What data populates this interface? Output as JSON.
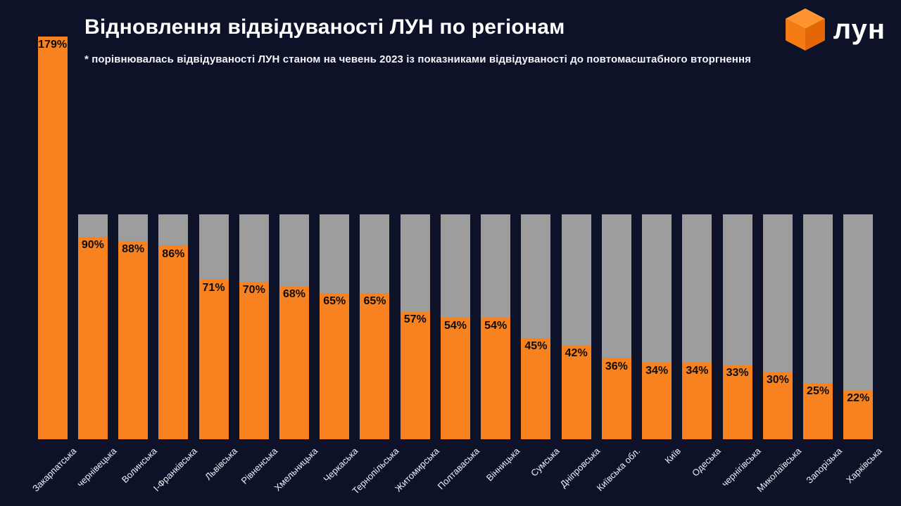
{
  "page": {
    "background": "#0d1228"
  },
  "header": {
    "title": "Відновлення відвідуваності ЛУН по регіонам",
    "subtitle": "* порівнювалась відвідуваності ЛУН станом на чевень 2023 із показниками відвідуваності до повтомасштабного вторгнення"
  },
  "logo": {
    "text": "лун",
    "cube_colors": {
      "top": "#ff9431",
      "left": "#f57b15",
      "right": "#e56607"
    }
  },
  "chart_data": {
    "type": "bar",
    "title": "Відновлення відвідуваності ЛУН по регіонам",
    "categories": [
      "Закарпатська",
      "чернівецька",
      "Волинська",
      "І-Франківська",
      "Львівська",
      "Рівненська",
      "Хмельницька",
      "Черкаська",
      "Тернопільська",
      "Житомирська",
      "Полтаваська",
      "Вінницька",
      "Сумська",
      "Дніпровська",
      "Київська обл.",
      "Київ",
      "Одеська",
      "чернігівська",
      "Миколаївська",
      "Запорізька",
      "Харківська"
    ],
    "values": [
      179,
      90,
      88,
      86,
      71,
      70,
      68,
      65,
      65,
      57,
      54,
      54,
      45,
      42,
      36,
      34,
      34,
      33,
      30,
      25,
      22
    ],
    "value_suffix": "%",
    "baseline_value": 100,
    "xlabel": "",
    "ylabel": "",
    "ylim": [
      0,
      185
    ],
    "grid": false,
    "legend": "none",
    "bar_color": "#f8821f",
    "baseline_bar_color": "#9d9d9d",
    "value_label_color": "#0d0d0d",
    "x_label_rotation_deg": -45
  }
}
